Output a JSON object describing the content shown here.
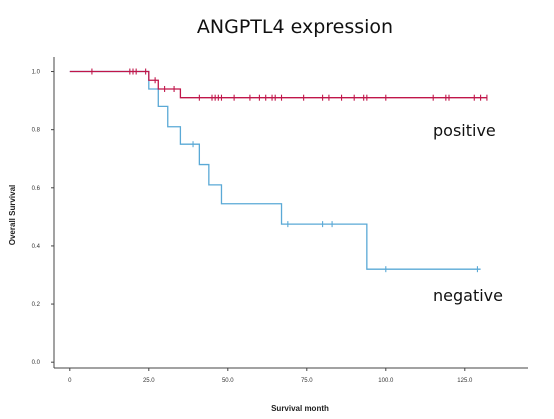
{
  "chart_data": {
    "type": "line",
    "subtype": "kaplan-meier step",
    "title": "ANGPTL4 expression",
    "xlabel": "Survival month",
    "ylabel": "Overall Survival",
    "xlim": [
      -5,
      145
    ],
    "ylim": [
      -0.02,
      1.05
    ],
    "x_ticks": [
      0,
      25,
      50,
      75,
      100,
      125
    ],
    "x_tick_labels": [
      "0",
      "25.0",
      "50.0",
      "75.0",
      "100.0",
      "125.0"
    ],
    "y_ticks": [
      0,
      0.2,
      0.4,
      0.6,
      0.8,
      1.0
    ],
    "y_tick_labels": [
      "0.0",
      "0.2",
      "0.4",
      "0.6",
      "0.8",
      "1.0"
    ],
    "grid": false,
    "series": [
      {
        "name": "positive",
        "color": "#c0164a",
        "steps": [
          [
            0,
            1.0
          ],
          [
            25,
            0.97
          ],
          [
            28,
            0.94
          ],
          [
            35,
            0.91
          ],
          [
            132,
            0.91
          ]
        ],
        "censored": [
          [
            7,
            1.0
          ],
          [
            19,
            1.0
          ],
          [
            20,
            1.0
          ],
          [
            21,
            1.0
          ],
          [
            24,
            1.0
          ],
          [
            27,
            0.97
          ],
          [
            30,
            0.94
          ],
          [
            33,
            0.94
          ],
          [
            41,
            0.91
          ],
          [
            45,
            0.91
          ],
          [
            46,
            0.91
          ],
          [
            47,
            0.91
          ],
          [
            48,
            0.91
          ],
          [
            52,
            0.91
          ],
          [
            57,
            0.91
          ],
          [
            60,
            0.91
          ],
          [
            62,
            0.91
          ],
          [
            64,
            0.91
          ],
          [
            65,
            0.91
          ],
          [
            67,
            0.91
          ],
          [
            74,
            0.91
          ],
          [
            80,
            0.91
          ],
          [
            82,
            0.91
          ],
          [
            86,
            0.91
          ],
          [
            90,
            0.91
          ],
          [
            93,
            0.91
          ],
          [
            94,
            0.91
          ],
          [
            100,
            0.91
          ],
          [
            115,
            0.91
          ],
          [
            119,
            0.91
          ],
          [
            120,
            0.91
          ],
          [
            128,
            0.91
          ],
          [
            130,
            0.91
          ],
          [
            132,
            0.91
          ]
        ]
      },
      {
        "name": "negative",
        "color": "#5aa9d6",
        "steps": [
          [
            0,
            1.0
          ],
          [
            25,
            0.94
          ],
          [
            28,
            0.88
          ],
          [
            31,
            0.81
          ],
          [
            35,
            0.75
          ],
          [
            41,
            0.68
          ],
          [
            44,
            0.61
          ],
          [
            48,
            0.545
          ],
          [
            67,
            0.475
          ],
          [
            94,
            0.32
          ],
          [
            130,
            0.32
          ]
        ],
        "censored": [
          [
            39,
            0.75
          ],
          [
            69,
            0.475
          ],
          [
            80,
            0.475
          ],
          [
            83,
            0.475
          ],
          [
            100,
            0.32
          ],
          [
            129,
            0.32
          ]
        ]
      }
    ]
  }
}
